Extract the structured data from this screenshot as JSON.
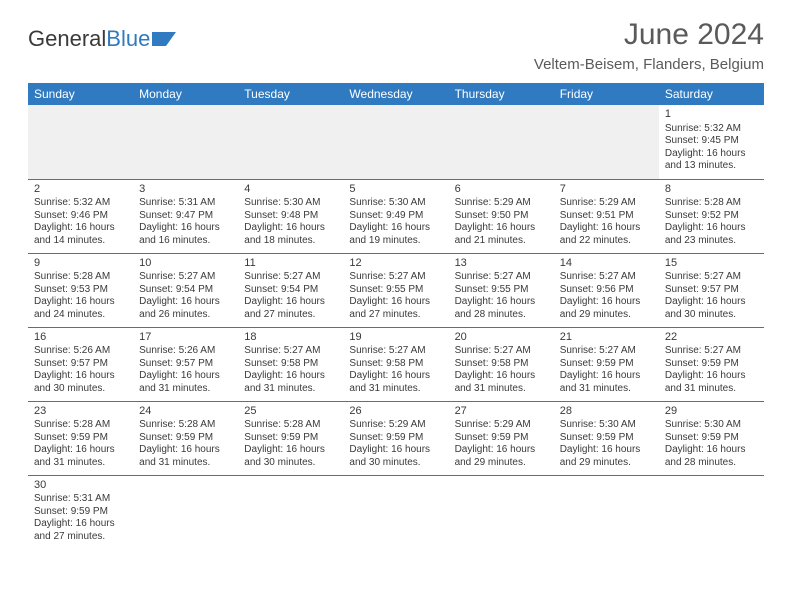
{
  "logo": {
    "text1": "General",
    "text2": "Blue"
  },
  "title": "June 2024",
  "subtitle": "Veltem-Beisem, Flanders, Belgium",
  "colors": {
    "header_bg": "#2f7ac0",
    "header_text": "#ffffff",
    "rule": "#2f7ac0",
    "text": "#3a3a3a",
    "title": "#5a5a5a"
  },
  "weekdays": [
    "Sunday",
    "Monday",
    "Tuesday",
    "Wednesday",
    "Thursday",
    "Friday",
    "Saturday"
  ],
  "labels": {
    "sunrise": "Sunrise:",
    "sunset": "Sunset:",
    "daylight": "Daylight:"
  },
  "weeks": [
    [
      null,
      null,
      null,
      null,
      null,
      null,
      {
        "n": "1",
        "sr": "5:32 AM",
        "ss": "9:45 PM",
        "dl": "16 hours and 13 minutes."
      }
    ],
    [
      {
        "n": "2",
        "sr": "5:32 AM",
        "ss": "9:46 PM",
        "dl": "16 hours and 14 minutes."
      },
      {
        "n": "3",
        "sr": "5:31 AM",
        "ss": "9:47 PM",
        "dl": "16 hours and 16 minutes."
      },
      {
        "n": "4",
        "sr": "5:30 AM",
        "ss": "9:48 PM",
        "dl": "16 hours and 18 minutes."
      },
      {
        "n": "5",
        "sr": "5:30 AM",
        "ss": "9:49 PM",
        "dl": "16 hours and 19 minutes."
      },
      {
        "n": "6",
        "sr": "5:29 AM",
        "ss": "9:50 PM",
        "dl": "16 hours and 21 minutes."
      },
      {
        "n": "7",
        "sr": "5:29 AM",
        "ss": "9:51 PM",
        "dl": "16 hours and 22 minutes."
      },
      {
        "n": "8",
        "sr": "5:28 AM",
        "ss": "9:52 PM",
        "dl": "16 hours and 23 minutes."
      }
    ],
    [
      {
        "n": "9",
        "sr": "5:28 AM",
        "ss": "9:53 PM",
        "dl": "16 hours and 24 minutes."
      },
      {
        "n": "10",
        "sr": "5:27 AM",
        "ss": "9:54 PM",
        "dl": "16 hours and 26 minutes."
      },
      {
        "n": "11",
        "sr": "5:27 AM",
        "ss": "9:54 PM",
        "dl": "16 hours and 27 minutes."
      },
      {
        "n": "12",
        "sr": "5:27 AM",
        "ss": "9:55 PM",
        "dl": "16 hours and 27 minutes."
      },
      {
        "n": "13",
        "sr": "5:27 AM",
        "ss": "9:55 PM",
        "dl": "16 hours and 28 minutes."
      },
      {
        "n": "14",
        "sr": "5:27 AM",
        "ss": "9:56 PM",
        "dl": "16 hours and 29 minutes."
      },
      {
        "n": "15",
        "sr": "5:27 AM",
        "ss": "9:57 PM",
        "dl": "16 hours and 30 minutes."
      }
    ],
    [
      {
        "n": "16",
        "sr": "5:26 AM",
        "ss": "9:57 PM",
        "dl": "16 hours and 30 minutes."
      },
      {
        "n": "17",
        "sr": "5:26 AM",
        "ss": "9:57 PM",
        "dl": "16 hours and 31 minutes."
      },
      {
        "n": "18",
        "sr": "5:27 AM",
        "ss": "9:58 PM",
        "dl": "16 hours and 31 minutes."
      },
      {
        "n": "19",
        "sr": "5:27 AM",
        "ss": "9:58 PM",
        "dl": "16 hours and 31 minutes."
      },
      {
        "n": "20",
        "sr": "5:27 AM",
        "ss": "9:58 PM",
        "dl": "16 hours and 31 minutes."
      },
      {
        "n": "21",
        "sr": "5:27 AM",
        "ss": "9:59 PM",
        "dl": "16 hours and 31 minutes."
      },
      {
        "n": "22",
        "sr": "5:27 AM",
        "ss": "9:59 PM",
        "dl": "16 hours and 31 minutes."
      }
    ],
    [
      {
        "n": "23",
        "sr": "5:28 AM",
        "ss": "9:59 PM",
        "dl": "16 hours and 31 minutes."
      },
      {
        "n": "24",
        "sr": "5:28 AM",
        "ss": "9:59 PM",
        "dl": "16 hours and 31 minutes."
      },
      {
        "n": "25",
        "sr": "5:28 AM",
        "ss": "9:59 PM",
        "dl": "16 hours and 30 minutes."
      },
      {
        "n": "26",
        "sr": "5:29 AM",
        "ss": "9:59 PM",
        "dl": "16 hours and 30 minutes."
      },
      {
        "n": "27",
        "sr": "5:29 AM",
        "ss": "9:59 PM",
        "dl": "16 hours and 29 minutes."
      },
      {
        "n": "28",
        "sr": "5:30 AM",
        "ss": "9:59 PM",
        "dl": "16 hours and 29 minutes."
      },
      {
        "n": "29",
        "sr": "5:30 AM",
        "ss": "9:59 PM",
        "dl": "16 hours and 28 minutes."
      }
    ],
    [
      {
        "n": "30",
        "sr": "5:31 AM",
        "ss": "9:59 PM",
        "dl": "16 hours and 27 minutes."
      },
      null,
      null,
      null,
      null,
      null,
      null
    ]
  ]
}
